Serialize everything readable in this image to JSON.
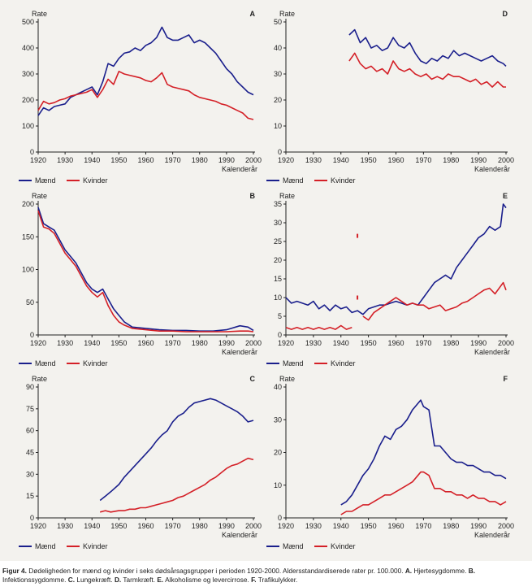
{
  "caption": {
    "label": "Figur 4.",
    "text": "Dødeligheden for mænd og kvinder i seks dødsårsagsgrupper i perioden 1920-2000. Aldersstandardiserede rater pr. 100.000.",
    "items": [
      {
        "key": "A.",
        "text": "Hjertesygdomme."
      },
      {
        "key": "B.",
        "text": "Infektionssygdomme."
      },
      {
        "key": "C.",
        "text": "Lungekræft."
      },
      {
        "key": "D.",
        "text": "Tarmkræft."
      },
      {
        "key": "E.",
        "text": "Alkoholisme og levercirrose."
      },
      {
        "key": "F.",
        "text": "Trafikulykker."
      }
    ]
  },
  "colors": {
    "maend": "#1a1f8c",
    "kvinder": "#d42027",
    "axis": "#222222"
  },
  "chart_data": [
    {
      "id": "A",
      "type": "line",
      "letter": "A",
      "ylabel": "Rate",
      "xlabel": "Kalenderår",
      "xlim": [
        1920,
        2000
      ],
      "ylim": [
        0,
        500
      ],
      "xticks": [
        1920,
        1930,
        1940,
        1950,
        1960,
        1970,
        1980,
        1990,
        2000
      ],
      "yticks": [
        0,
        100,
        200,
        300,
        400,
        500
      ],
      "legend": [
        "Mænd",
        "Kvinder"
      ],
      "series": [
        {
          "name": "Mænd",
          "x": [
            1920,
            1922,
            1924,
            1926,
            1928,
            1930,
            1932,
            1934,
            1936,
            1938,
            1940,
            1942,
            1944,
            1946,
            1948,
            1950,
            1952,
            1954,
            1956,
            1958,
            1960,
            1962,
            1964,
            1966,
            1968,
            1970,
            1972,
            1974,
            1976,
            1978,
            1980,
            1982,
            1984,
            1986,
            1988,
            1990,
            1992,
            1994,
            1996,
            1998,
            2000
          ],
          "y": [
            140,
            170,
            160,
            175,
            180,
            185,
            210,
            220,
            230,
            240,
            250,
            220,
            270,
            340,
            330,
            360,
            380,
            385,
            400,
            390,
            410,
            420,
            440,
            480,
            440,
            430,
            430,
            440,
            450,
            420,
            430,
            420,
            400,
            380,
            350,
            320,
            300,
            270,
            250,
            230,
            220
          ]
        },
        {
          "name": "Kvinder",
          "x": [
            1920,
            1922,
            1924,
            1926,
            1928,
            1930,
            1932,
            1934,
            1936,
            1938,
            1940,
            1942,
            1944,
            1946,
            1948,
            1950,
            1952,
            1954,
            1956,
            1958,
            1960,
            1962,
            1964,
            1966,
            1968,
            1970,
            1972,
            1974,
            1976,
            1978,
            1980,
            1982,
            1984,
            1986,
            1988,
            1990,
            1992,
            1994,
            1996,
            1998,
            2000
          ],
          "y": [
            160,
            195,
            185,
            190,
            200,
            205,
            215,
            220,
            225,
            230,
            240,
            210,
            240,
            280,
            260,
            310,
            300,
            295,
            290,
            285,
            275,
            270,
            285,
            305,
            260,
            250,
            245,
            240,
            235,
            220,
            210,
            205,
            200,
            195,
            185,
            180,
            170,
            160,
            150,
            130,
            125
          ]
        }
      ]
    },
    {
      "id": "D",
      "type": "line",
      "letter": "D",
      "ylabel": "Rate",
      "xlabel": "Kalenderår",
      "xlim": [
        1920,
        2000
      ],
      "ylim": [
        0,
        50
      ],
      "xticks": [
        1920,
        1930,
        1940,
        1950,
        1960,
        1970,
        1980,
        1990,
        2000
      ],
      "yticks": [
        0,
        10,
        20,
        30,
        40,
        50
      ],
      "legend": [
        "Mænd",
        "Kvinder"
      ],
      "series": [
        {
          "name": "Mænd",
          "x": [
            1943,
            1945,
            1947,
            1949,
            1951,
            1953,
            1955,
            1957,
            1959,
            1961,
            1963,
            1965,
            1967,
            1969,
            1971,
            1973,
            1975,
            1977,
            1979,
            1981,
            1983,
            1985,
            1987,
            1989,
            1991,
            1993,
            1995,
            1997,
            1999,
            2000
          ],
          "y": [
            45,
            47,
            42,
            44,
            40,
            41,
            39,
            40,
            44,
            41,
            40,
            42,
            38,
            35,
            34,
            36,
            35,
            37,
            36,
            39,
            37,
            38,
            37,
            36,
            35,
            36,
            37,
            35,
            34,
            33
          ]
        },
        {
          "name": "Kvinder",
          "x": [
            1943,
            1945,
            1947,
            1949,
            1951,
            1953,
            1955,
            1957,
            1959,
            1961,
            1963,
            1965,
            1967,
            1969,
            1971,
            1973,
            1975,
            1977,
            1979,
            1981,
            1983,
            1985,
            1987,
            1989,
            1991,
            1993,
            1995,
            1997,
            1999,
            2000
          ],
          "y": [
            35,
            38,
            34,
            32,
            33,
            31,
            32,
            30,
            35,
            32,
            31,
            32,
            30,
            29,
            30,
            28,
            29,
            28,
            30,
            29,
            29,
            28,
            27,
            28,
            26,
            27,
            25,
            27,
            25,
            25
          ]
        }
      ]
    },
    {
      "id": "B",
      "type": "line",
      "letter": "B",
      "ylabel": "Rate",
      "xlabel": "Kalenderår",
      "xlim": [
        1920,
        2000
      ],
      "ylim": [
        0,
        200
      ],
      "xticks": [
        1920,
        1930,
        1940,
        1950,
        1960,
        1970,
        1980,
        1990,
        2000
      ],
      "yticks": [
        0,
        50,
        100,
        150,
        200
      ],
      "legend": [
        "Mænd",
        "Kvinder"
      ],
      "series": [
        {
          "name": "Mænd",
          "x": [
            1920,
            1922,
            1924,
            1926,
            1928,
            1930,
            1932,
            1934,
            1936,
            1938,
            1940,
            1942,
            1944,
            1946,
            1948,
            1950,
            1952,
            1955,
            1960,
            1965,
            1970,
            1975,
            1980,
            1985,
            1990,
            1995,
            1998,
            2000
          ],
          "y": [
            195,
            170,
            165,
            160,
            145,
            130,
            120,
            110,
            95,
            80,
            70,
            65,
            70,
            55,
            40,
            30,
            20,
            12,
            10,
            8,
            7,
            7,
            6,
            6,
            8,
            14,
            12,
            7
          ]
        },
        {
          "name": "Kvinder",
          "x": [
            1920,
            1922,
            1924,
            1926,
            1928,
            1930,
            1932,
            1934,
            1936,
            1938,
            1940,
            1942,
            1944,
            1946,
            1948,
            1950,
            1952,
            1955,
            1960,
            1965,
            1970,
            1975,
            1980,
            1985,
            1990,
            1995,
            1998,
            2000
          ],
          "y": [
            190,
            165,
            162,
            155,
            140,
            125,
            115,
            105,
            90,
            75,
            65,
            58,
            65,
            45,
            30,
            20,
            15,
            10,
            8,
            6,
            6,
            5,
            5,
            5,
            5,
            6,
            6,
            5
          ]
        }
      ]
    },
    {
      "id": "E",
      "type": "line",
      "letter": "E",
      "ylabel": "Rate",
      "xlabel": "Kalenderår",
      "xlim": [
        1920,
        2000
      ],
      "ylim": [
        0,
        35
      ],
      "xticks": [
        1920,
        1930,
        1940,
        1950,
        1960,
        1970,
        1980,
        1990,
        2000
      ],
      "yticks": [
        0,
        5,
        10,
        15,
        20,
        25,
        30,
        35
      ],
      "legend": [
        "Mænd",
        "Kvinder"
      ],
      "series": [
        {
          "name": "Mænd",
          "x": [
            1920,
            1922,
            1924,
            1926,
            1928,
            1930,
            1932,
            1934,
            1936,
            1938,
            1940,
            1942,
            1944,
            1946,
            1948,
            1950,
            1952,
            1954,
            1956,
            1958,
            1960,
            1962,
            1964,
            1966,
            1968,
            1970,
            1972,
            1974,
            1976,
            1978,
            1980,
            1982,
            1984,
            1986,
            1988,
            1990,
            1992,
            1994,
            1996,
            1998,
            1999,
            2000
          ],
          "y": [
            10,
            8.5,
            9,
            8.5,
            8,
            9,
            7,
            8,
            6.5,
            8,
            7,
            7.5,
            6,
            6.5,
            5.5,
            7,
            7.5,
            8,
            8,
            8.5,
            9,
            8.5,
            8,
            8.5,
            8,
            10,
            12,
            14,
            15,
            16,
            15,
            18,
            20,
            22,
            24,
            26,
            27,
            29,
            28,
            29,
            35,
            34
          ]
        },
        {
          "name": "Kvinder",
          "x": [
            1920,
            1922,
            1924,
            1926,
            1928,
            1930,
            1932,
            1934,
            1936,
            1938,
            1940,
            1942,
            1944
          ],
          "y": [
            2,
            1.5,
            2,
            1.5,
            2,
            1.5,
            2,
            1.5,
            2,
            1.5,
            2.5,
            1.5,
            2
          ]
        },
        {
          "name": "Kvinder",
          "x": [
            1948,
            1950,
            1952,
            1954,
            1956,
            1958,
            1960,
            1962,
            1964,
            1966,
            1968,
            1970,
            1972,
            1974,
            1976,
            1978,
            1980,
            1982,
            1984,
            1986,
            1988,
            1990,
            1992,
            1994,
            1996,
            1998,
            1999,
            2000
          ],
          "y": [
            5,
            4,
            6,
            7,
            8,
            9,
            10,
            9,
            8,
            8.5,
            8,
            8,
            7,
            7.5,
            8,
            6.5,
            7,
            7.5,
            8.5,
            9,
            10,
            11,
            12,
            12.5,
            11,
            13,
            14,
            12
          ]
        }
      ],
      "outliers": [
        {
          "name": "Kvinder",
          "x": 1946,
          "y": 26.5
        },
        {
          "name": "Kvinder",
          "x": 1946,
          "y": 10
        }
      ]
    },
    {
      "id": "C",
      "type": "line",
      "letter": "C",
      "ylabel": "Rate",
      "xlabel": "Kalenderår",
      "xlim": [
        1920,
        2000
      ],
      "ylim": [
        0,
        90
      ],
      "xticks": [
        1920,
        1930,
        1940,
        1950,
        1960,
        1970,
        1980,
        1990,
        2000
      ],
      "yticks": [
        0,
        15,
        30,
        45,
        60,
        75,
        90
      ],
      "legend": [
        "Mænd",
        "Kvinder"
      ],
      "series": [
        {
          "name": "Mænd",
          "x": [
            1943,
            1945,
            1947,
            1950,
            1952,
            1954,
            1956,
            1958,
            1960,
            1962,
            1964,
            1966,
            1968,
            1970,
            1972,
            1974,
            1976,
            1978,
            1980,
            1982,
            1984,
            1986,
            1988,
            1990,
            1992,
            1994,
            1996,
            1998,
            2000
          ],
          "y": [
            12,
            15,
            18,
            23,
            28,
            32,
            36,
            40,
            44,
            48,
            53,
            57,
            60,
            66,
            70,
            72,
            76,
            79,
            80,
            81,
            82,
            81,
            79,
            77,
            75,
            73,
            70,
            66,
            67
          ]
        },
        {
          "name": "Kvinder",
          "x": [
            1943,
            1945,
            1947,
            1950,
            1952,
            1954,
            1956,
            1958,
            1960,
            1962,
            1964,
            1966,
            1968,
            1970,
            1972,
            1974,
            1976,
            1978,
            1980,
            1982,
            1984,
            1986,
            1988,
            1990,
            1992,
            1994,
            1996,
            1998,
            2000
          ],
          "y": [
            4,
            5,
            4,
            5,
            5,
            6,
            6,
            7,
            7,
            8,
            9,
            10,
            11,
            12,
            14,
            15,
            17,
            19,
            21,
            23,
            26,
            28,
            31,
            34,
            36,
            37,
            39,
            41,
            40
          ]
        }
      ]
    },
    {
      "id": "F",
      "type": "line",
      "letter": "F",
      "ylabel": "Rate",
      "xlabel": "Kalenderår",
      "xlim": [
        1920,
        2000
      ],
      "ylim": [
        0,
        40
      ],
      "xticks": [
        1920,
        1930,
        1940,
        1950,
        1960,
        1970,
        1980,
        1990,
        2000
      ],
      "yticks": [
        0,
        10,
        20,
        30,
        40
      ],
      "legend": [
        "Mænd",
        "Kvinder"
      ],
      "series": [
        {
          "name": "Mænd",
          "x": [
            1940,
            1942,
            1944,
            1946,
            1948,
            1950,
            1952,
            1954,
            1956,
            1958,
            1960,
            1962,
            1964,
            1966,
            1968,
            1969,
            1970,
            1972,
            1974,
            1976,
            1978,
            1980,
            1982,
            1984,
            1986,
            1988,
            1990,
            1992,
            1994,
            1996,
            1998,
            2000
          ],
          "y": [
            4,
            5,
            7,
            10,
            13,
            15,
            18,
            22,
            25,
            24,
            27,
            28,
            30,
            33,
            35,
            36,
            34,
            33,
            22,
            22,
            20,
            18,
            17,
            17,
            16,
            16,
            15,
            14,
            14,
            13,
            13,
            12
          ]
        },
        {
          "name": "Kvinder",
          "x": [
            1940,
            1942,
            1944,
            1946,
            1948,
            1950,
            1952,
            1954,
            1956,
            1958,
            1960,
            1962,
            1964,
            1966,
            1968,
            1969,
            1970,
            1972,
            1974,
            1976,
            1978,
            1980,
            1982,
            1984,
            1986,
            1988,
            1990,
            1992,
            1994,
            1996,
            1998,
            2000
          ],
          "y": [
            1,
            2,
            2,
            3,
            4,
            4,
            5,
            6,
            7,
            7,
            8,
            9,
            10,
            11,
            13,
            14,
            14,
            13,
            9,
            9,
            8,
            8,
            7,
            7,
            6,
            7,
            6,
            6,
            5,
            5,
            4,
            5
          ]
        }
      ]
    }
  ]
}
